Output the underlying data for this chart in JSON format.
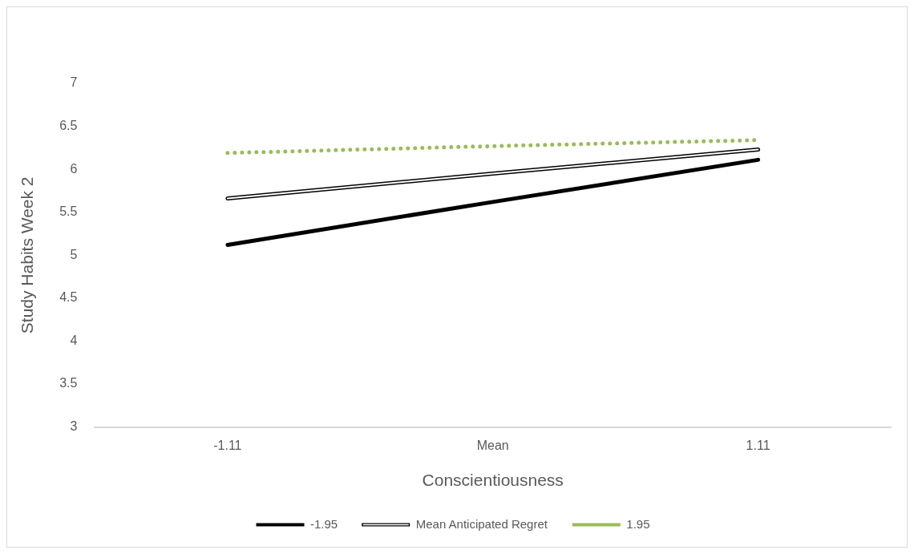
{
  "chart_data": {
    "type": "line",
    "xlabel": "Conscientiousness",
    "ylabel": "Study Habits Week 2",
    "categories": [
      "-1.11",
      "Mean",
      "1.11"
    ],
    "ylim": [
      3,
      7
    ],
    "yticks": [
      3,
      3.5,
      4,
      4.5,
      5,
      5.5,
      6,
      6.5,
      7
    ],
    "grid": false,
    "legend": "bottom",
    "marker": "none",
    "series": [
      {
        "name": "-1.95",
        "color": "#000000",
        "line_style": "solid",
        "values": [
          5.12,
          5.62,
          6.11
        ]
      },
      {
        "name": "Mean Anticipated Regret",
        "color": "#000000",
        "line_style": "solid",
        "values": [
          5.66,
          5.95,
          6.23
        ]
      },
      {
        "name": "1.95",
        "color": "#9bbb59",
        "line_style": "dotted",
        "values": [
          6.19,
          6.27,
          6.34
        ]
      }
    ]
  }
}
